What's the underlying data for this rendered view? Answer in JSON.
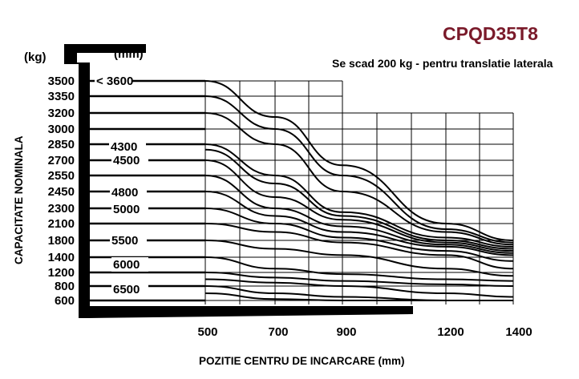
{
  "chart_data": {
    "type": "line",
    "title": "CPQD35T8",
    "subtitle": "Se scad 200 kg - pentru translatie  laterala",
    "xlabel": "POZITIE CENTRU DE INCARCARE (mm)",
    "ylabel": "CAPACITATE NOMINALA",
    "y_unit": "(kg)",
    "height_unit": "(mm)",
    "xlim": [
      500,
      1400
    ],
    "x_ticks": [
      "500",
      "700",
      "900",
      "1200",
      "1400"
    ],
    "y_ticks": [
      "3500",
      "3350",
      "3200",
      "3000",
      "2850",
      "2700",
      "2550",
      "2450",
      "2300",
      "2100",
      "1800",
      "1400",
      "1200",
      "800",
      "600"
    ],
    "height_labels": [
      "< 3600",
      "4300",
      "4500",
      "4800",
      "5000",
      "5500",
      "6000",
      "6500"
    ],
    "grid": true,
    "x": [
      500,
      700,
      900,
      1200,
      1400
    ],
    "series": [
      {
        "values": [
          3500,
          3150,
          2650,
          2100,
          1800
        ]
      },
      {
        "values": [
          3350,
          3000,
          2550,
          2000,
          1750
        ]
      },
      {
        "values": [
          3200,
          2850,
          2450,
          1950,
          1700
        ]
      },
      {
        "values": [
          2850,
          2550,
          2250,
          1850,
          1650
        ]
      },
      {
        "values": [
          2800,
          2500,
          2200,
          1800,
          1600
        ]
      },
      {
        "values": [
          2700,
          2400,
          2150,
          1750,
          1550
        ]
      },
      {
        "values": [
          2550,
          2300,
          2050,
          1700,
          1500
        ]
      },
      {
        "values": [
          2450,
          2200,
          1950,
          1650,
          1450
        ]
      },
      {
        "values": [
          2300,
          2100,
          1850,
          1550,
          1350
        ]
      },
      {
        "values": [
          2100,
          1950,
          1750,
          1450,
          1250
        ]
      },
      {
        "values": [
          1800,
          1600,
          1450,
          1250,
          1100
        ]
      },
      {
        "values": [
          1400,
          1250,
          1150,
          1000,
          950
        ]
      },
      {
        "values": [
          1200,
          1050,
          950,
          850,
          800
        ]
      },
      {
        "values": [
          1000,
          900,
          800,
          700,
          650
        ]
      },
      {
        "values": [
          800,
          700,
          650,
          600,
          550
        ]
      },
      {
        "values": [
          700,
          620,
          580,
          540,
          520
        ]
      }
    ]
  }
}
